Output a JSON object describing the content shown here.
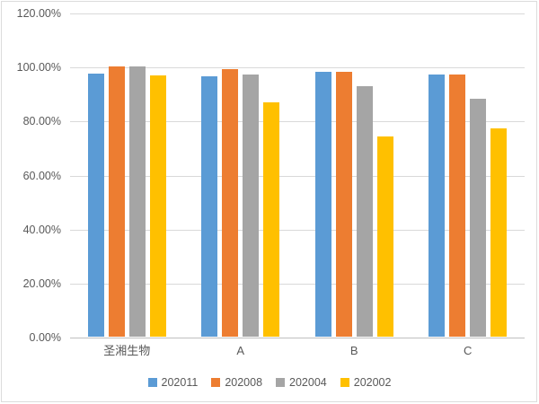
{
  "chart_data": {
    "type": "bar",
    "title": "",
    "xlabel": "",
    "ylabel": "",
    "categories": [
      "圣湘生物",
      "A",
      "B",
      "C"
    ],
    "series": [
      {
        "name": "202011",
        "color": "#5B9BD5",
        "values": [
          97.4,
          96.3,
          98.1,
          97.2
        ]
      },
      {
        "name": "202008",
        "color": "#ED7D31",
        "values": [
          100.0,
          99.2,
          98.0,
          97.1
        ]
      },
      {
        "name": "202004",
        "color": "#A5A5A5",
        "values": [
          100.0,
          97.2,
          92.8,
          88.2
        ]
      },
      {
        "name": "202002",
        "color": "#FFC000",
        "values": [
          96.7,
          86.7,
          74.2,
          77.2
        ]
      }
    ],
    "y_axis": {
      "min": 0,
      "max": 120,
      "step": 20,
      "tick_labels": [
        "0.00%",
        "20.00%",
        "40.00%",
        "60.00%",
        "80.00%",
        "100.00%",
        "120.00%"
      ]
    },
    "grid": true,
    "legend_position": "bottom",
    "colors": {
      "gridline": "#d9d9d9",
      "axis_line": "#bfbfbf",
      "text": "#595959",
      "frame_border": "#dcdcdc",
      "background": "#ffffff"
    }
  }
}
